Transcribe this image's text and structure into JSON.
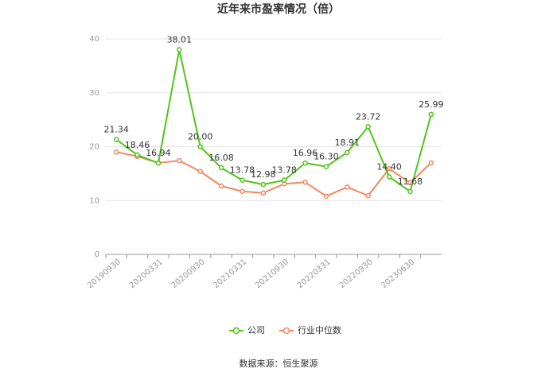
{
  "chart_data": {
    "type": "line",
    "title": "近年来市盈率情况（倍）",
    "categories": [
      "20190930",
      null,
      "20200331",
      null,
      "20200930",
      null,
      "20210331",
      null,
      "20210930",
      null,
      "20220331",
      null,
      "20220930",
      null,
      "20230630",
      null
    ],
    "series": [
      {
        "name": "公司",
        "color": "#52c41a",
        "values": [
          21.34,
          18.46,
          16.94,
          38.01,
          20.0,
          16.08,
          13.78,
          12.98,
          13.78,
          16.96,
          16.3,
          18.91,
          23.72,
          14.4,
          11.68,
          25.99
        ],
        "value_labels": [
          "21.34",
          "18.46",
          "16.94",
          "38.01",
          "20.00",
          "16.08",
          "13.78",
          "12.98",
          "13.78",
          "16.96",
          "16.30",
          "18.91",
          "23.72",
          "14.40",
          "11.68",
          "25.99"
        ]
      },
      {
        "name": "行业中位数",
        "color": "#f5875f",
        "values": [
          19.0,
          18.2,
          17.0,
          17.4,
          15.4,
          12.7,
          11.7,
          11.4,
          13.1,
          13.4,
          10.8,
          12.5,
          10.9,
          15.9,
          13.3,
          17.0
        ]
      }
    ],
    "ylim": [
      0,
      40
    ],
    "yticks": [
      0,
      10,
      20,
      30,
      40
    ],
    "grid": true,
    "legend": "bottom",
    "source": "数据来源：恒生聚源"
  }
}
